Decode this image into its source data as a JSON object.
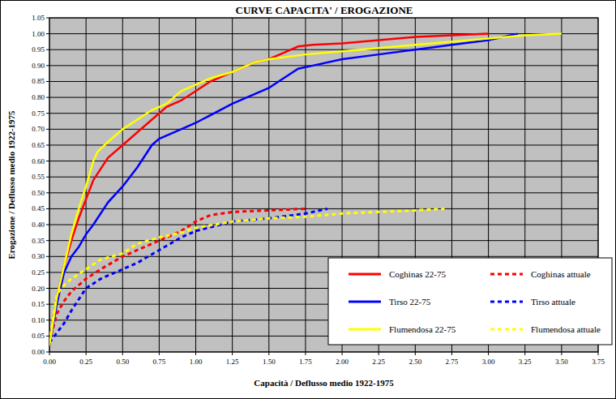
{
  "chart_data": {
    "type": "line",
    "title": "CURVE CAPACITA' / EROGAZIONE",
    "x_label": "Capacità / Deflusso medio 1922-1975",
    "y_label": "Erogazione / Deflusso medio 1922-1975",
    "xlim": [
      0,
      3.75
    ],
    "ylim": [
      0,
      1.05
    ],
    "xticks": [
      {
        "value": 0,
        "label": "0.00"
      },
      {
        "value": 0.25,
        "label": "0.25"
      },
      {
        "value": 0.5,
        "label": "0.50"
      },
      {
        "value": 0.75,
        "label": "0.75"
      },
      {
        "value": 1,
        "label": "1.00"
      },
      {
        "value": 1.25,
        "label": "1.25"
      },
      {
        "value": 1.5,
        "label": "1.50"
      },
      {
        "value": 1.75,
        "label": "1.75"
      },
      {
        "value": 2,
        "label": "2.00"
      },
      {
        "value": 2.25,
        "label": "2.25"
      },
      {
        "value": 2.5,
        "label": "2.50"
      },
      {
        "value": 2.75,
        "label": "2.75"
      },
      {
        "value": 3,
        "label": "3.00"
      },
      {
        "value": 3.25,
        "label": "3.25"
      },
      {
        "value": 3.5,
        "label": "3.50"
      },
      {
        "value": 3.75,
        "label": "3.75"
      }
    ],
    "yticks": [
      {
        "value": 0,
        "label": "0.00"
      },
      {
        "value": 0.05,
        "label": "0.05"
      },
      {
        "value": 0.1,
        "label": "0.10"
      },
      {
        "value": 0.15,
        "label": "0.15"
      },
      {
        "value": 0.2,
        "label": "0.20"
      },
      {
        "value": 0.25,
        "label": "0.25"
      },
      {
        "value": 0.3,
        "label": "0.30"
      },
      {
        "value": 0.35,
        "label": "0.35"
      },
      {
        "value": 0.4,
        "label": "0.40"
      },
      {
        "value": 0.45,
        "label": "0.45"
      },
      {
        "value": 0.5,
        "label": "0.50"
      },
      {
        "value": 0.55,
        "label": "0.55"
      },
      {
        "value": 0.6,
        "label": "0.60"
      },
      {
        "value": 0.65,
        "label": "0.65"
      },
      {
        "value": 0.7,
        "label": "0.70"
      },
      {
        "value": 0.75,
        "label": "0.75"
      },
      {
        "value": 0.8,
        "label": "0.80"
      },
      {
        "value": 0.85,
        "label": "0.85"
      },
      {
        "value": 0.9,
        "label": "0.90"
      },
      {
        "value": 0.95,
        "label": "0.95"
      },
      {
        "value": 1,
        "label": "1.00"
      },
      {
        "value": 1.05,
        "label": "1.05"
      }
    ],
    "grid": true,
    "legend": "bottom-right",
    "series": [
      {
        "name": "Coghinas 22-75",
        "color": "#ff0000",
        "line_style": "solid",
        "x": [
          0,
          0.05,
          0.1,
          0.15,
          0.2,
          0.25,
          0.3,
          0.4,
          0.5,
          0.6,
          0.7,
          0.8,
          0.9,
          1.0,
          1.1,
          1.25,
          1.4,
          1.5,
          1.6,
          1.7,
          1.8,
          2.0,
          2.25,
          2.5,
          2.75,
          3.0
        ],
        "values": [
          0.02,
          0.17,
          0.27,
          0.35,
          0.42,
          0.48,
          0.54,
          0.61,
          0.65,
          0.69,
          0.73,
          0.77,
          0.79,
          0.82,
          0.85,
          0.88,
          0.91,
          0.92,
          0.94,
          0.96,
          0.965,
          0.97,
          0.98,
          0.99,
          0.995,
          1.0
        ]
      },
      {
        "name": "Coghinas attuale",
        "color": "#ff0000",
        "line_style": "dashed",
        "x": [
          0,
          0.05,
          0.1,
          0.15,
          0.25,
          0.35,
          0.5,
          0.6,
          0.75,
          0.9,
          1.0,
          1.1,
          1.25,
          1.5,
          1.75
        ],
        "values": [
          0.03,
          0.12,
          0.16,
          0.19,
          0.23,
          0.26,
          0.3,
          0.32,
          0.35,
          0.38,
          0.41,
          0.43,
          0.44,
          0.445,
          0.45
        ]
      },
      {
        "name": "Tirso 22-75",
        "color": "#0000ff",
        "line_style": "solid",
        "x": [
          0,
          0.05,
          0.1,
          0.15,
          0.2,
          0.25,
          0.3,
          0.4,
          0.5,
          0.6,
          0.7,
          0.75,
          0.9,
          1.0,
          1.25,
          1.5,
          1.6,
          1.7,
          1.8,
          2.0,
          2.25,
          2.5,
          2.75,
          3.0,
          3.2
        ],
        "values": [
          0.02,
          0.15,
          0.25,
          0.3,
          0.33,
          0.37,
          0.4,
          0.47,
          0.52,
          0.58,
          0.65,
          0.67,
          0.7,
          0.72,
          0.78,
          0.83,
          0.86,
          0.89,
          0.9,
          0.92,
          0.935,
          0.95,
          0.965,
          0.98,
          1.0
        ]
      },
      {
        "name": "Tirso attuale",
        "color": "#0000ff",
        "line_style": "dashed",
        "x": [
          0,
          0.05,
          0.1,
          0.15,
          0.25,
          0.35,
          0.5,
          0.6,
          0.75,
          0.9,
          1.0,
          1.25,
          1.5,
          1.75,
          1.9
        ],
        "values": [
          0.03,
          0.06,
          0.09,
          0.13,
          0.2,
          0.23,
          0.26,
          0.28,
          0.32,
          0.36,
          0.38,
          0.41,
          0.42,
          0.435,
          0.45
        ]
      },
      {
        "name": "Flumendosa 22-75",
        "color": "#ffff00",
        "line_style": "solid",
        "x": [
          0,
          0.05,
          0.1,
          0.15,
          0.2,
          0.25,
          0.3,
          0.33,
          0.4,
          0.5,
          0.6,
          0.7,
          0.8,
          0.9,
          1.0,
          1.1,
          1.25,
          1.4,
          1.5,
          1.75,
          2.0,
          2.25,
          2.5,
          2.75,
          3.0,
          3.25,
          3.5
        ],
        "values": [
          0.02,
          0.17,
          0.27,
          0.37,
          0.45,
          0.52,
          0.6,
          0.63,
          0.66,
          0.7,
          0.73,
          0.76,
          0.78,
          0.82,
          0.84,
          0.86,
          0.88,
          0.91,
          0.92,
          0.935,
          0.945,
          0.955,
          0.965,
          0.975,
          0.985,
          0.995,
          1.0
        ]
      },
      {
        "name": "Flumendosa attuale",
        "color": "#ffff00",
        "line_style": "dashed",
        "x": [
          0,
          0.05,
          0.1,
          0.15,
          0.25,
          0.35,
          0.5,
          0.6,
          0.75,
          0.9,
          1.0,
          1.25,
          1.5,
          1.75,
          2.0,
          2.25,
          2.5,
          2.7
        ],
        "values": [
          0.03,
          0.18,
          0.21,
          0.23,
          0.26,
          0.29,
          0.31,
          0.34,
          0.36,
          0.375,
          0.39,
          0.41,
          0.42,
          0.425,
          0.435,
          0.44,
          0.445,
          0.45
        ]
      }
    ]
  }
}
